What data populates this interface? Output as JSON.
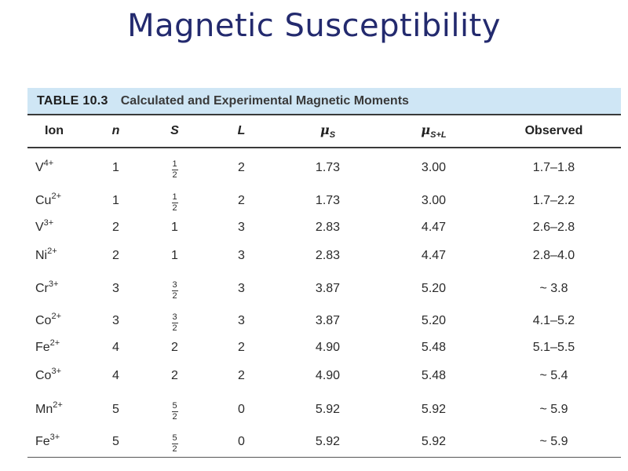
{
  "slide": {
    "title": "Magnetic Susceptibility"
  },
  "table": {
    "label": "TABLE 10.3",
    "caption": "Calculated and Experimental Magnetic Moments",
    "headers": {
      "ion": "Ion",
      "n": "n",
      "S": "S",
      "L": "L",
      "mu_s_symbol": "μ",
      "mu_s_sub": "S",
      "mu_sl_symbol": "μ",
      "mu_sl_sub": "S+L",
      "observed": "Observed"
    },
    "rows": [
      {
        "ion": "V",
        "charge": "4+",
        "n": "1",
        "S_num": "1",
        "S_den": "2",
        "L": "2",
        "mu_s": "1.73",
        "mu_sl": "3.00",
        "observed": "1.7–1.8"
      },
      {
        "ion": "Cu",
        "charge": "2+",
        "n": "1",
        "S_num": "1",
        "S_den": "2",
        "L": "2",
        "mu_s": "1.73",
        "mu_sl": "3.00",
        "observed": "1.7–2.2"
      },
      {
        "ion": "V",
        "charge": "3+",
        "n": "2",
        "S": "1",
        "L": "3",
        "mu_s": "2.83",
        "mu_sl": "4.47",
        "observed": "2.6–2.8"
      },
      {
        "ion": "Ni",
        "charge": "2+",
        "n": "2",
        "S": "1",
        "L": "3",
        "mu_s": "2.83",
        "mu_sl": "4.47",
        "observed": "2.8–4.0"
      },
      {
        "ion": "Cr",
        "charge": "3+",
        "n": "3",
        "S_num": "3",
        "S_den": "2",
        "L": "3",
        "mu_s": "3.87",
        "mu_sl": "5.20",
        "observed": "~ 3.8"
      },
      {
        "ion": "Co",
        "charge": "2+",
        "n": "3",
        "S_num": "3",
        "S_den": "2",
        "L": "3",
        "mu_s": "3.87",
        "mu_sl": "5.20",
        "observed": "4.1–5.2"
      },
      {
        "ion": "Fe",
        "charge": "2+",
        "n": "4",
        "S": "2",
        "L": "2",
        "mu_s": "4.90",
        "mu_sl": "5.48",
        "observed": "5.1–5.5"
      },
      {
        "ion": "Co",
        "charge": "3+",
        "n": "4",
        "S": "2",
        "L": "2",
        "mu_s": "4.90",
        "mu_sl": "5.48",
        "observed": "~ 5.4"
      },
      {
        "ion": "Mn",
        "charge": "2+",
        "n": "5",
        "S_num": "5",
        "S_den": "2",
        "L": "0",
        "mu_s": "5.92",
        "mu_sl": "5.92",
        "observed": "~ 5.9"
      },
      {
        "ion": "Fe",
        "charge": "3+",
        "n": "5",
        "S_num": "5",
        "S_den": "2",
        "L": "0",
        "mu_s": "5.92",
        "mu_sl": "5.92",
        "observed": "~ 5.9"
      }
    ]
  }
}
